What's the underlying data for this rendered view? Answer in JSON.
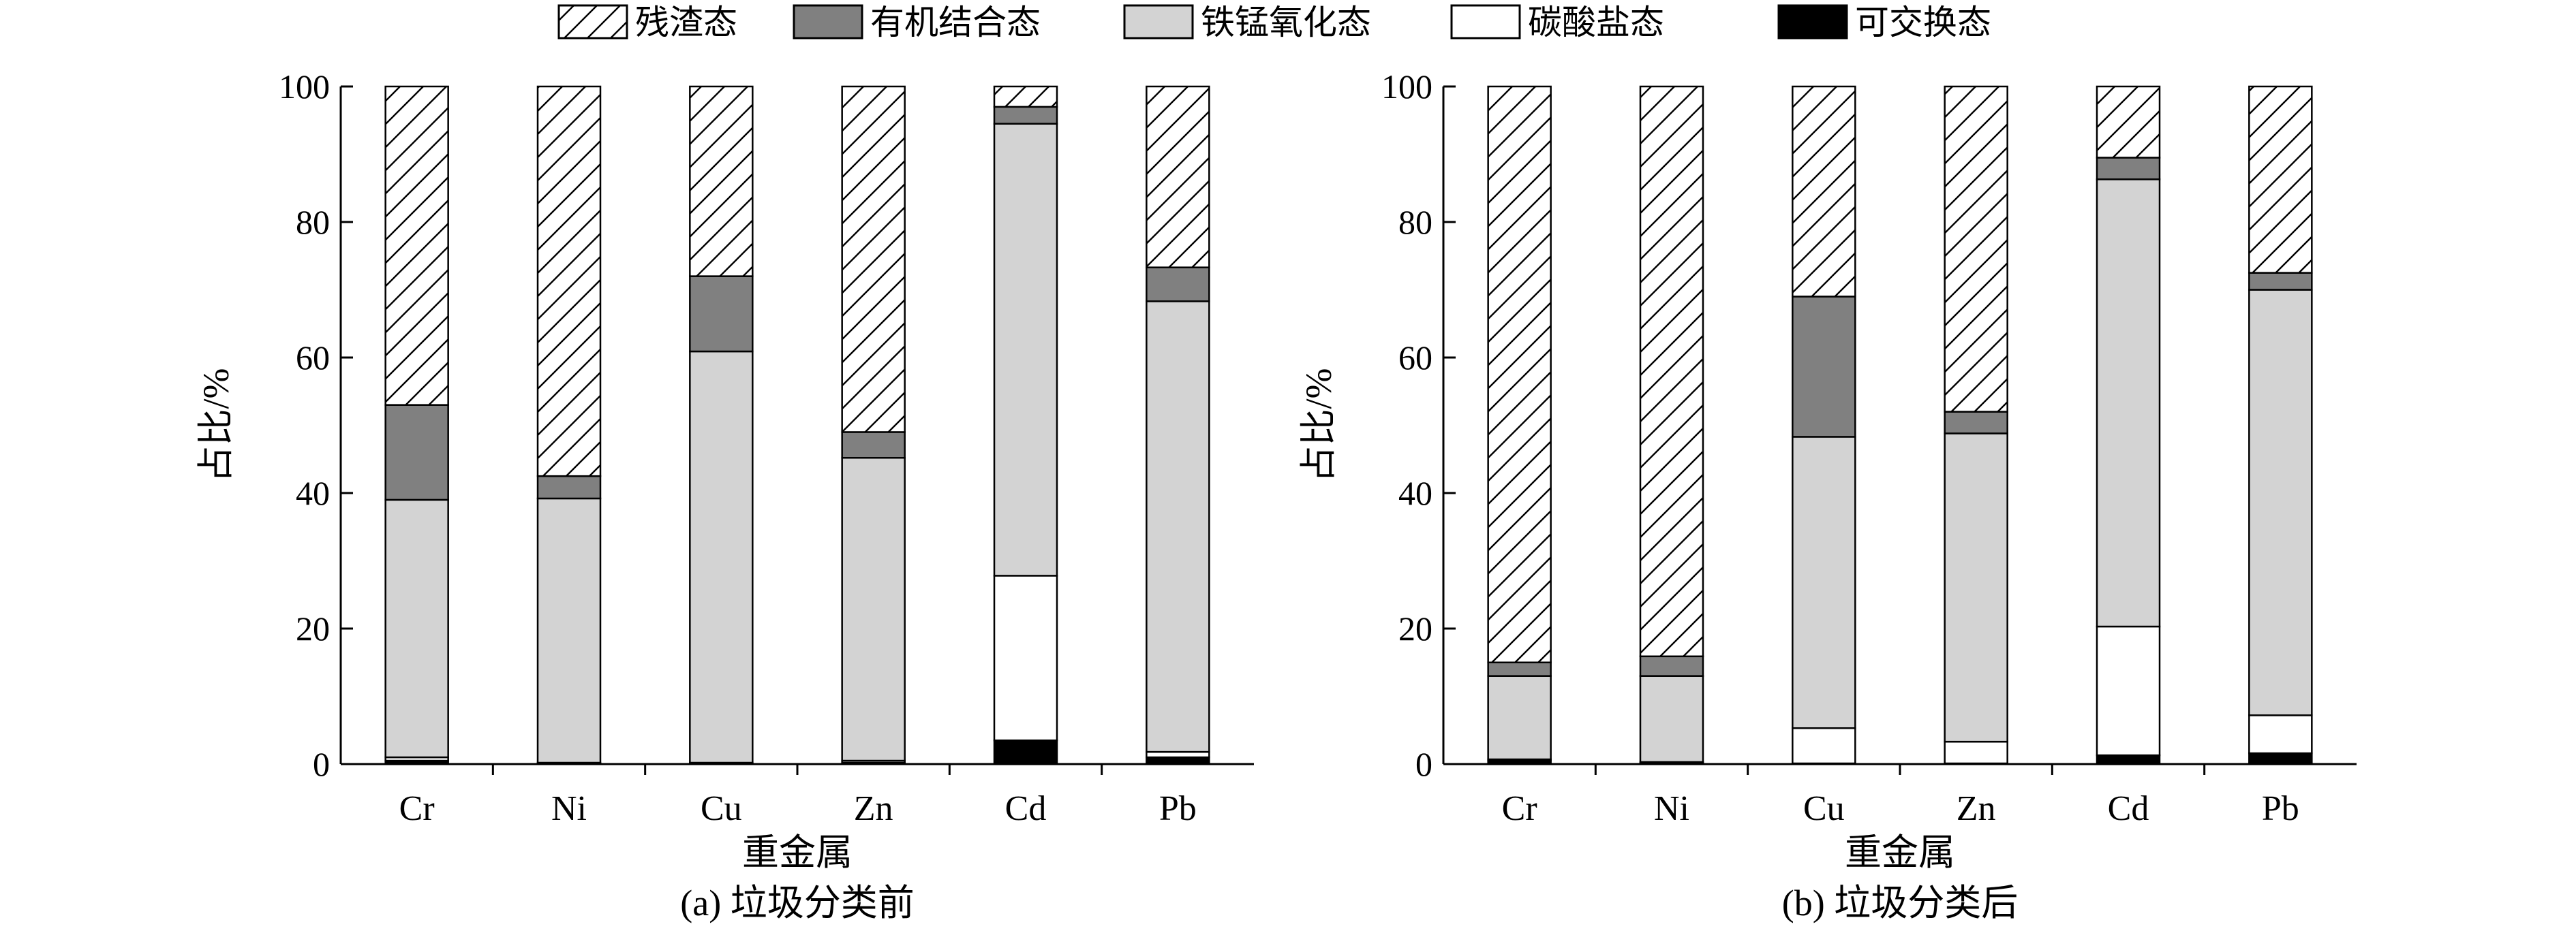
{
  "legend": [
    {
      "key": "residual",
      "label": "残渣态",
      "fill": "hatch"
    },
    {
      "key": "organic",
      "label": "有机结合态",
      "fill": "#808080"
    },
    {
      "key": "femn",
      "label": "铁锰氧化态",
      "fill": "#d3d3d3"
    },
    {
      "key": "carbonate",
      "label": "碳酸盐态",
      "fill": "#ffffff"
    },
    {
      "key": "exchangeable",
      "label": "可交换态",
      "fill": "#000000"
    }
  ],
  "colors": {
    "axis": "#000000",
    "organic": "#808080",
    "femn": "#d3d3d3",
    "carbonate": "#ffffff",
    "exchangeable": "#000000",
    "hatch_stroke": "#000000"
  },
  "chart_data": [
    {
      "type": "bar",
      "stacked": true,
      "caption": "(a) 垃圾分类前",
      "xlabel": "重金属",
      "ylabel": "占比/%",
      "ylim": [
        0,
        100
      ],
      "yticks": [
        0,
        20,
        40,
        60,
        80,
        100
      ],
      "categories": [
        "Cr",
        "Ni",
        "Cu",
        "Zn",
        "Cd",
        "Pb"
      ],
      "series": [
        {
          "name": "可交换态",
          "key": "exchangeable",
          "values": [
            0.5,
            0.1,
            0.1,
            0.2,
            3.5,
            1.0
          ]
        },
        {
          "name": "碳酸盐态",
          "key": "carbonate",
          "values": [
            0.5,
            0.1,
            0.1,
            0.3,
            24.3,
            0.8
          ]
        },
        {
          "name": "铁锰氧化态",
          "key": "femn",
          "values": [
            38.0,
            39.0,
            60.7,
            44.7,
            66.7,
            66.5
          ]
        },
        {
          "name": "有机结合态",
          "key": "organic",
          "values": [
            14.0,
            3.3,
            11.1,
            3.8,
            2.5,
            5.0
          ]
        },
        {
          "name": "残渣态",
          "key": "residual",
          "values": [
            47.0,
            57.5,
            28.0,
            51.0,
            3.0,
            26.7
          ]
        }
      ]
    },
    {
      "type": "bar",
      "stacked": true,
      "caption": "(b) 垃圾分类后",
      "xlabel": "重金属",
      "ylabel": "占比/%",
      "ylim": [
        0,
        100
      ],
      "yticks": [
        0,
        20,
        40,
        60,
        80,
        100
      ],
      "categories": [
        "Cr",
        "Ni",
        "Cu",
        "Zn",
        "Cd",
        "Pb"
      ],
      "series": [
        {
          "name": "可交换态",
          "key": "exchangeable",
          "values": [
            0.5,
            0.2,
            0.1,
            0.1,
            1.3,
            1.6
          ]
        },
        {
          "name": "碳酸盐态",
          "key": "carbonate",
          "values": [
            0.2,
            0.1,
            5.2,
            3.2,
            19.0,
            5.6
          ]
        },
        {
          "name": "铁锰氧化态",
          "key": "femn",
          "values": [
            12.3,
            12.7,
            43.0,
            45.5,
            66.0,
            62.8
          ]
        },
        {
          "name": "有机结合态",
          "key": "organic",
          "values": [
            2.0,
            2.9,
            20.7,
            3.2,
            3.2,
            2.5
          ]
        },
        {
          "name": "残渣态",
          "key": "residual",
          "values": [
            85.0,
            84.1,
            31.0,
            48.0,
            10.5,
            27.5
          ]
        }
      ]
    }
  ]
}
